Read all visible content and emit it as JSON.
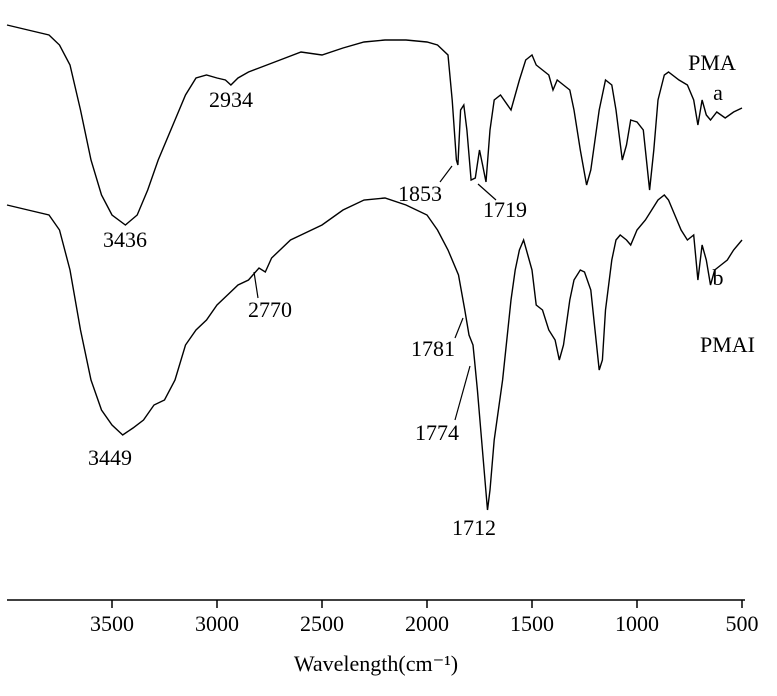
{
  "chart_data": {
    "type": "line",
    "x_label": "Wavelength(cm⁻¹)",
    "xlim": [
      4000,
      500
    ],
    "xticks": [
      3500,
      3000,
      2500,
      2000,
      1500,
      1000,
      500
    ],
    "ylim": [
      600,
      0
    ],
    "series": [
      {
        "name": "PMA",
        "label": "a",
        "color": "#000000",
        "x": [
          4000,
          3900,
          3800,
          3750,
          3700,
          3650,
          3600,
          3550,
          3500,
          3436,
          3380,
          3330,
          3280,
          3200,
          3150,
          3100,
          3050,
          3000,
          2960,
          2934,
          2900,
          2850,
          2800,
          2700,
          2600,
          2500,
          2400,
          2300,
          2200,
          2100,
          2000,
          1950,
          1900,
          1880,
          1860,
          1853,
          1840,
          1825,
          1810,
          1790,
          1770,
          1750,
          1735,
          1719,
          1700,
          1680,
          1650,
          1600,
          1560,
          1530,
          1500,
          1480,
          1450,
          1420,
          1400,
          1380,
          1350,
          1320,
          1300,
          1270,
          1240,
          1220,
          1180,
          1150,
          1120,
          1100,
          1070,
          1050,
          1030,
          1000,
          970,
          940,
          920,
          900,
          870,
          850,
          800,
          760,
          730,
          710,
          690,
          670,
          650,
          620,
          580,
          540,
          500
        ],
        "values": [
          25,
          30,
          35,
          45,
          65,
          110,
          160,
          195,
          215,
          225,
          215,
          190,
          160,
          120,
          95,
          78,
          75,
          78,
          80,
          85,
          78,
          72,
          68,
          60,
          52,
          55,
          48,
          42,
          40,
          40,
          42,
          45,
          55,
          100,
          160,
          165,
          110,
          105,
          130,
          180,
          178,
          150,
          165,
          182,
          130,
          100,
          95,
          110,
          80,
          60,
          55,
          65,
          70,
          75,
          90,
          80,
          85,
          90,
          110,
          150,
          185,
          170,
          110,
          80,
          85,
          110,
          160,
          145,
          120,
          122,
          130,
          190,
          150,
          100,
          75,
          72,
          80,
          85,
          100,
          125,
          100,
          115,
          120,
          112,
          118,
          112,
          108
        ]
      },
      {
        "name": "PMAI",
        "label": "b",
        "color": "#000000",
        "x": [
          4000,
          3900,
          3800,
          3750,
          3700,
          3650,
          3600,
          3550,
          3500,
          3449,
          3400,
          3350,
          3300,
          3250,
          3200,
          3150,
          3100,
          3050,
          3000,
          2950,
          2900,
          2850,
          2800,
          2770,
          2740,
          2700,
          2650,
          2600,
          2500,
          2400,
          2300,
          2200,
          2100,
          2000,
          1950,
          1900,
          1850,
          1820,
          1800,
          1781,
          1774,
          1760,
          1740,
          1720,
          1712,
          1700,
          1680,
          1660,
          1640,
          1620,
          1600,
          1580,
          1560,
          1540,
          1520,
          1500,
          1480,
          1450,
          1420,
          1390,
          1370,
          1350,
          1320,
          1300,
          1270,
          1250,
          1220,
          1200,
          1180,
          1165,
          1150,
          1120,
          1100,
          1080,
          1050,
          1030,
          1000,
          960,
          930,
          900,
          870,
          850,
          820,
          790,
          760,
          730,
          710,
          690,
          670,
          650,
          630,
          600,
          570,
          540,
          500
        ],
        "values": [
          205,
          210,
          215,
          230,
          270,
          330,
          380,
          410,
          425,
          435,
          428,
          420,
          405,
          400,
          380,
          345,
          330,
          320,
          305,
          295,
          285,
          280,
          268,
          272,
          258,
          250,
          240,
          235,
          225,
          210,
          200,
          198,
          205,
          215,
          230,
          250,
          275,
          310,
          335,
          345,
          360,
          390,
          440,
          490,
          510,
          490,
          440,
          410,
          380,
          340,
          300,
          270,
          250,
          240,
          255,
          270,
          305,
          310,
          330,
          340,
          360,
          345,
          300,
          280,
          270,
          272,
          290,
          330,
          370,
          360,
          310,
          260,
          240,
          235,
          240,
          245,
          230,
          220,
          210,
          200,
          195,
          200,
          215,
          230,
          240,
          235,
          280,
          245,
          260,
          285,
          270,
          265,
          260,
          250,
          240
        ]
      }
    ],
    "annotations": [
      "2934",
      "3436",
      "1853",
      "1719",
      "2770",
      "1781",
      "1774",
      "3449",
      "1712"
    ]
  }
}
